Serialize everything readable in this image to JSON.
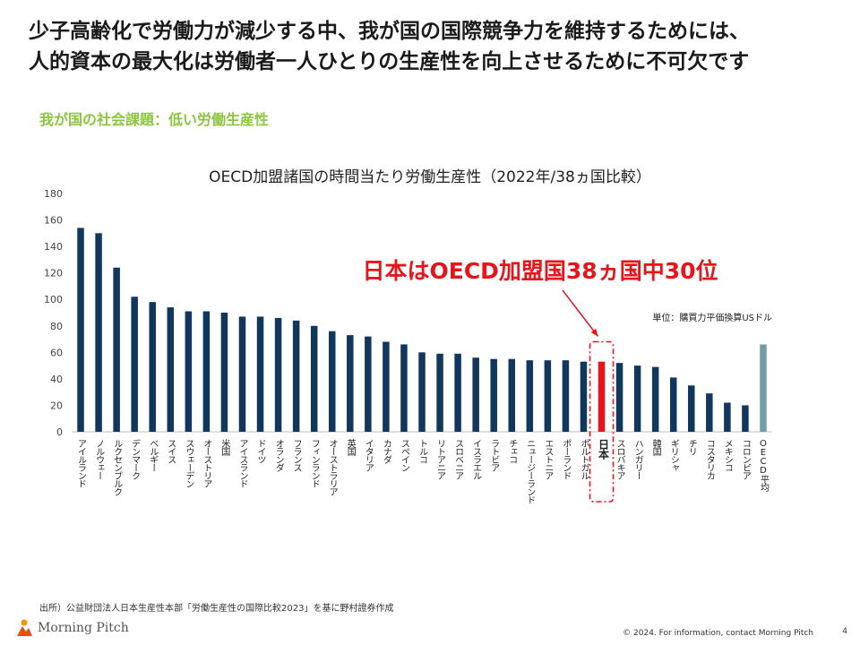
{
  "headline": {
    "line1": "少子高齢化で労働力が減少する中、我が国の国際競争力を維持するためには、",
    "line2": "人的資本の最大化は労働者一人ひとりの生産性を向上させるために不可欠です"
  },
  "subheadline": "我が国の社会課題：低い労働生産性",
  "footer": {
    "source": "出所）公益財団法人日本生産性本部「労働生産性の国際比較2023」を基に野村證券作成",
    "logo_text": "Morning Pitch",
    "copyright": "© 2024. For information, contact Morning Pitch",
    "page_number": "4"
  },
  "chart_data": {
    "type": "bar",
    "title": "OECD加盟諸国の時間当たり労働生産性（2022年/38ヵ国比較）",
    "unit_note": "単位：購買力平価換算USドル",
    "callout": "日本はOECD加盟国38ヵ国中30位",
    "ylim": [
      0,
      180
    ],
    "yticks": [
      0,
      20,
      40,
      60,
      80,
      100,
      120,
      140,
      160,
      180
    ],
    "grid": false,
    "highlight_index": 29,
    "average_index": 38,
    "colors": {
      "bar": "#12375c",
      "highlight": "#e8141c",
      "average": "#6f9fa5",
      "callout": "#e8141c"
    },
    "categories": [
      "アイルランド",
      "ノルウェー",
      "ルクセンブルク",
      "デンマーク",
      "ベルギー",
      "スイス",
      "スウェーデン",
      "オーストリア",
      "米国",
      "アイスランド",
      "ドイツ",
      "オランダ",
      "フランス",
      "フィンランド",
      "オーストラリア",
      "英国",
      "イタリア",
      "カナダ",
      "スペイン",
      "トルコ",
      "リトアニア",
      "スロベニア",
      "イスラエル",
      "ラトビア",
      "チェコ",
      "ニュージーランド",
      "エストニア",
      "ポーランド",
      "ポルトガル",
      "日本",
      "スロバキア",
      "ハンガリー",
      "韓国",
      "ギリシャ",
      "チリ",
      "コスタリカ",
      "メキシコ",
      "コロンビア",
      "OECD平均"
    ],
    "values": [
      154,
      150,
      124,
      102,
      98,
      94,
      91,
      91,
      90,
      87,
      87,
      86,
      84,
      80,
      76,
      73,
      72,
      68,
      66,
      60,
      59,
      59,
      56,
      55,
      55,
      54,
      54,
      54,
      53,
      53,
      52,
      50,
      49,
      41,
      35,
      29,
      22,
      20,
      66
    ]
  }
}
